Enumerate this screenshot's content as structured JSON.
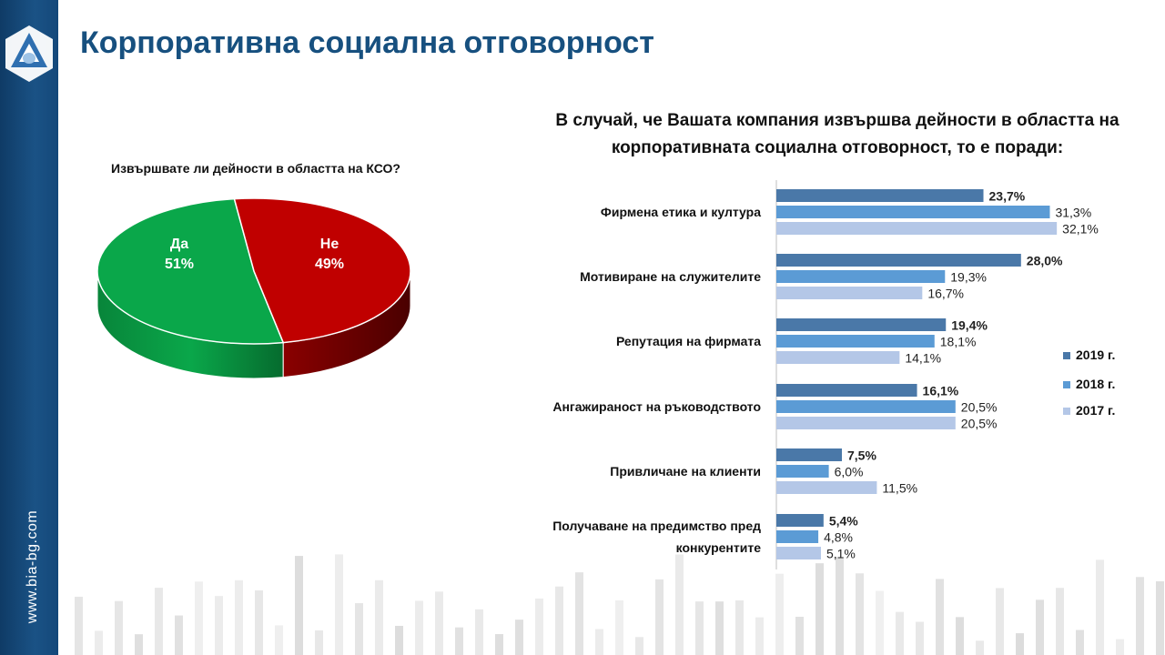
{
  "page": {
    "title": "Корпоративна социална отговорност",
    "website": "www.bia-bg.com"
  },
  "colors": {
    "sidebar": "#17507f",
    "title": "#17507f",
    "yes": "#0aa74a",
    "no": "#c00000",
    "series_2019": "#4a78a8",
    "series_2018": "#5b9bd5",
    "series_2017": "#b4c7e7"
  },
  "chart_data": [
    {
      "type": "pie",
      "title": "Извършвате ли дейности в областта на КСО?",
      "labels": [
        "Да",
        "Не"
      ],
      "values": [
        51,
        49
      ],
      "value_labels": [
        "51%",
        "49%"
      ]
    },
    {
      "type": "bar",
      "orientation": "horizontal",
      "title": "В случай, че Вашата компания извършва дейности в областта на корпоративната социална отговорност, то е поради:",
      "categories": [
        "Фирмена етика и култура",
        "Мотивиране на служителите",
        "Репутация на фирмата",
        "Ангажираност на ръководството",
        "Привличане на клиенти",
        "Получаване на предимство пред конкурентите"
      ],
      "series": [
        {
          "name": "2019 г.",
          "values": [
            23.7,
            28.0,
            19.4,
            16.1,
            7.5,
            5.4
          ],
          "labels": [
            "23,7%",
            "28,0%",
            "19,4%",
            "16,1%",
            "7,5%",
            "5,4%"
          ]
        },
        {
          "name": "2018 г.",
          "values": [
            31.3,
            19.3,
            18.1,
            20.5,
            6.0,
            4.8
          ],
          "labels": [
            "31,3%",
            "19,3%",
            "18,1%",
            "20,5%",
            "6,0%",
            "4,8%"
          ]
        },
        {
          "name": "2017 г.",
          "values": [
            32.1,
            16.7,
            14.1,
            20.5,
            11.5,
            5.1
          ],
          "labels": [
            "32,1%",
            "16,7%",
            "14,1%",
            "20,5%",
            "11,5%",
            "5,1%"
          ]
        }
      ],
      "legend_position": "right"
    }
  ]
}
